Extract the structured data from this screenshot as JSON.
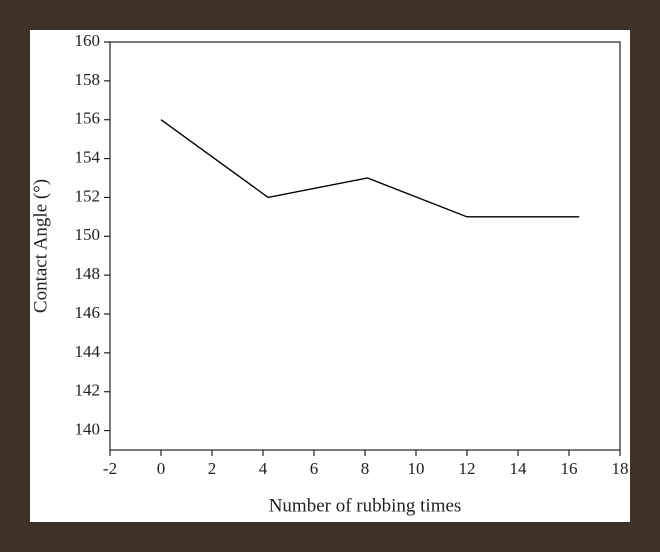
{
  "chart_data": {
    "type": "line",
    "x_label": "Number of rubbing times",
    "y_label": "Contact Angle (°)",
    "x": [
      0,
      4.2,
      8.1,
      12,
      16.4
    ],
    "series": [
      {
        "color": "#000000",
        "values": [
          156,
          152,
          153,
          151,
          151
        ]
      }
    ],
    "xlim": [
      -2,
      18
    ],
    "xticks": [
      -2,
      0,
      2,
      4,
      6,
      8,
      10,
      12,
      14,
      16,
      18
    ],
    "ylim": [
      139,
      160
    ],
    "yticks": [
      140,
      142,
      144,
      146,
      148,
      150,
      152,
      154,
      156,
      158,
      160
    ]
  }
}
